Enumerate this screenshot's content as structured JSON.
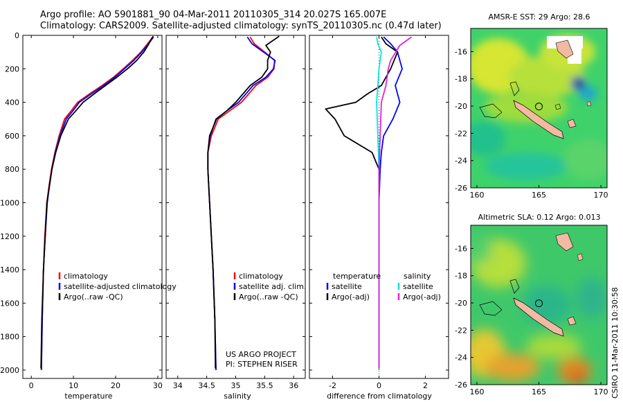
{
  "header": {
    "line1": "Argo profile: AO 5901881_90 04-Mar-2011 20110305_314 20.027S 165.007E",
    "line2": "Climatology: CARS2009. Satellite-adjusted climatology: synTS_20110305.nc (0.47d later)"
  },
  "credit": {
    "project": "US ARGO PROJECT",
    "pi": "PI: STEPHEN RISER"
  },
  "timestamp": "CSIRO 11-Mar-2011 10:30:58",
  "colors": {
    "climatology": "#ff0000",
    "satellite": "#0000ff",
    "argo": "#000000",
    "salinity_satellite": "#00e5e5",
    "salinity_argo": "#e020e0"
  },
  "chart_data": [
    {
      "type": "line",
      "name": "temperature-profile",
      "xlabel": "temperature",
      "ylabel": "",
      "xlim": [
        -2,
        31
      ],
      "ylim": [
        2050,
        0
      ],
      "xticks": [
        0,
        10,
        20,
        30
      ],
      "yticks": [
        0,
        200,
        400,
        600,
        800,
        1000,
        1200,
        1400,
        1600,
        1800,
        2000
      ],
      "legend": [
        "climatology",
        "satellite-adjusted climatology",
        "Argo(..raw -QC)"
      ],
      "series": [
        {
          "name": "climatology",
          "color": "#ff0000",
          "x": [
            28.8,
            27.6,
            26.0,
            24.0,
            21.8,
            19.5,
            16.8,
            13.8,
            11.0,
            9.5,
            7.9,
            6.6,
            5.6,
            4.8,
            4.2,
            3.7,
            3.2,
            2.9,
            2.6,
            2.4
          ],
          "y": [
            10,
            50,
            100,
            150,
            200,
            250,
            300,
            350,
            400,
            450,
            500,
            600,
            700,
            800,
            900,
            1000,
            1200,
            1400,
            1700,
            2000
          ]
        },
        {
          "name": "satellite-adjusted climatology",
          "color": "#0000ff",
          "x": [
            29.0,
            27.8,
            26.2,
            24.3,
            22.1,
            19.8,
            17.2,
            14.2,
            11.4,
            9.9,
            8.3,
            6.8,
            5.7,
            4.9,
            4.3,
            3.8,
            3.3,
            2.9,
            2.6,
            2.4
          ],
          "y": [
            10,
            50,
            100,
            150,
            200,
            250,
            300,
            350,
            400,
            450,
            500,
            600,
            700,
            800,
            900,
            1000,
            1200,
            1400,
            1700,
            2000
          ]
        },
        {
          "name": "Argo(..raw -QC)",
          "color": "#000000",
          "x": [
            28.9,
            27.9,
            26.7,
            25.0,
            22.8,
            20.3,
            17.6,
            14.9,
            12.3,
            10.6,
            8.8,
            7.0,
            5.8,
            4.9,
            4.3,
            3.7,
            3.3,
            2.9,
            2.5,
            2.3
          ],
          "y": [
            5,
            50,
            100,
            150,
            200,
            250,
            300,
            350,
            400,
            450,
            500,
            600,
            700,
            800,
            900,
            1000,
            1200,
            1400,
            1700,
            1990
          ]
        }
      ]
    },
    {
      "type": "line",
      "name": "salinity-profile",
      "xlabel": "salinity",
      "xlim": [
        33.8,
        36.2
      ],
      "ylim": [
        2050,
        0
      ],
      "xticks": [
        34,
        34.5,
        35,
        35.5,
        36
      ],
      "legend": [
        "climatology",
        "satellite adj. clim.",
        "Argo(..raw -QC)"
      ],
      "series": [
        {
          "name": "climatology",
          "color": "#ff0000",
          "x": [
            35.25,
            35.32,
            35.5,
            35.67,
            35.66,
            35.55,
            35.35,
            35.1,
            34.9,
            34.7,
            34.58,
            34.52,
            34.52,
            34.55,
            34.58,
            34.61,
            34.64,
            34.66
          ],
          "y": [
            10,
            50,
            100,
            150,
            200,
            250,
            300,
            400,
            450,
            500,
            600,
            700,
            800,
            1000,
            1200,
            1400,
            1700,
            2000
          ]
        },
        {
          "name": "satellite adj. clim.",
          "color": "#0000ff",
          "x": [
            35.2,
            35.28,
            35.48,
            35.68,
            35.65,
            35.52,
            35.3,
            35.05,
            34.85,
            34.66,
            34.56,
            34.52,
            34.52,
            34.55,
            34.58,
            34.61,
            34.64,
            34.66
          ],
          "y": [
            10,
            50,
            100,
            150,
            200,
            250,
            300,
            400,
            450,
            500,
            600,
            700,
            800,
            1000,
            1200,
            1400,
            1700,
            2000
          ]
        },
        {
          "name": "Argo(..raw -QC)",
          "color": "#000000",
          "x": [
            35.75,
            35.52,
            35.6,
            35.55,
            35.55,
            35.45,
            35.25,
            35.0,
            34.85,
            34.67,
            34.55,
            34.52,
            34.52,
            34.55,
            34.58,
            34.61,
            34.64,
            34.65
          ],
          "y": [
            5,
            60,
            100,
            150,
            200,
            250,
            300,
            400,
            450,
            500,
            600,
            700,
            800,
            1000,
            1200,
            1400,
            1700,
            1990
          ]
        }
      ]
    },
    {
      "type": "line",
      "name": "difference-profile",
      "xlabel": "difference from climatology",
      "xlim": [
        -3,
        3
      ],
      "ylim": [
        2050,
        0
      ],
      "xticks": [
        -2,
        0,
        2
      ],
      "legend_temperature": {
        "heading": "temperature",
        "entries": [
          "satellite",
          "Argo(-adj)"
        ]
      },
      "legend_salinity": {
        "heading": "salinity",
        "entries": [
          "satellite",
          "Argo(-adj)"
        ]
      },
      "series": [
        {
          "name": "temperature satellite",
          "color": "#0000ff",
          "x": [
            0.2,
            0.5,
            0.8,
            0.9,
            1.0,
            0.7,
            0.9,
            0.6,
            0.2,
            0.1,
            0.05,
            0.0,
            0.0,
            0.0,
            0.0,
            0.0
          ],
          "y": [
            10,
            50,
            100,
            150,
            200,
            300,
            400,
            500,
            600,
            700,
            800,
            1000,
            1200,
            1500,
            1800,
            2000
          ]
        },
        {
          "name": "temperature Argo(-adj)",
          "color": "#000000",
          "x": [
            0.1,
            0.3,
            0.8,
            0.5,
            0.1,
            -0.5,
            -1.0,
            -2.3,
            -1.9,
            -1.5,
            -0.3,
            0.0,
            0.0,
            0.0,
            0.0,
            0.0
          ],
          "y": [
            10,
            50,
            100,
            200,
            300,
            350,
            400,
            440,
            500,
            600,
            700,
            800,
            1000,
            1400,
            1800,
            1990
          ]
        },
        {
          "name": "salinity satellite",
          "color": "#00e5e5",
          "x": [
            -0.1,
            -0.05,
            0.1,
            0.0,
            -0.05,
            -0.1,
            -0.05,
            0.0,
            0.0,
            0.0,
            0.0,
            0.0
          ],
          "y": [
            10,
            50,
            100,
            200,
            300,
            400,
            600,
            800,
            1000,
            1400,
            1800,
            2000
          ]
        },
        {
          "name": "salinity Argo(-adj)",
          "color": "#e020e0",
          "x": [
            1.4,
            0.9,
            0.5,
            0.4,
            0.3,
            0.1,
            0.05,
            0.0,
            0.0,
            0.0,
            0.0
          ],
          "y": [
            10,
            60,
            150,
            200,
            300,
            400,
            600,
            800,
            1000,
            1500,
            1990
          ]
        }
      ]
    },
    {
      "type": "heatmap",
      "name": "sst-map",
      "title": "AMSR-E SST: 29 Argo: 28.6",
      "xlim": [
        159.5,
        170.5
      ],
      "ylim": [
        -26,
        -14.3
      ],
      "xticks": [
        160,
        165,
        170
      ],
      "yticks": [
        -16,
        -18,
        -20,
        -22,
        -24,
        -26
      ],
      "float_lon": 165.0,
      "float_lat": -20.03
    },
    {
      "type": "heatmap",
      "name": "sla-map",
      "title": "Altimetric SLA: 0.12 Argo: 0.013",
      "xlim": [
        159.5,
        170.5
      ],
      "ylim": [
        -26,
        -14.3
      ],
      "xticks": [
        160,
        165,
        170
      ],
      "yticks": [
        -16,
        -18,
        -20,
        -22,
        -24,
        -26
      ],
      "float_lon": 165.0,
      "float_lat": -20.03
    }
  ]
}
